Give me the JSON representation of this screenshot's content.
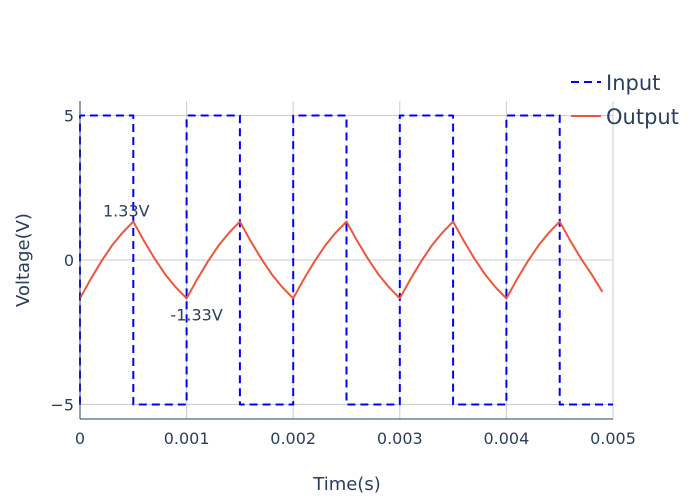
{
  "chart_data": {
    "type": "line",
    "title": "",
    "xlabel": "Time(s)",
    "ylabel": "Voltage(V)",
    "xlim": [
      0,
      0.005
    ],
    "ylim": [
      -5.5,
      5.5
    ],
    "x_ticks": [
      {
        "value": 0,
        "label": "0"
      },
      {
        "value": 0.001,
        "label": "0.001"
      },
      {
        "value": 0.002,
        "label": "0.002"
      },
      {
        "value": 0.003,
        "label": "0.003"
      },
      {
        "value": 0.004,
        "label": "0.004"
      },
      {
        "value": 0.005,
        "label": "0.005"
      }
    ],
    "y_ticks": [
      {
        "value": -5,
        "label": "−5"
      },
      {
        "value": 0,
        "label": "0"
      },
      {
        "value": 5,
        "label": "5"
      }
    ],
    "grid": true,
    "legend_position": "top-right",
    "series": [
      {
        "name": "Input",
        "color": "#0000ff",
        "dash": "dashed",
        "x": [
          0,
          0,
          0.0005,
          0.0005,
          0.001,
          0.001,
          0.0015,
          0.0015,
          0.002,
          0.002,
          0.0025,
          0.0025,
          0.003,
          0.003,
          0.0035,
          0.0035,
          0.004,
          0.004,
          0.0045,
          0.0045,
          0.005
        ],
        "y": [
          -5,
          5,
          5,
          -5,
          -5,
          5,
          5,
          -5,
          -5,
          5,
          5,
          -5,
          -5,
          5,
          5,
          -5,
          -5,
          5,
          5,
          -5,
          -5
        ]
      },
      {
        "name": "Output",
        "color": "#ef553b",
        "dash": "solid",
        "x": [
          0,
          0.0001,
          0.0002,
          0.0003,
          0.0004,
          0.0005,
          0.0006,
          0.0007,
          0.0008,
          0.0009,
          0.001,
          0.0011,
          0.0012,
          0.0013,
          0.0014,
          0.0015,
          0.0016,
          0.0017,
          0.0018,
          0.0019,
          0.002,
          0.0021,
          0.0022,
          0.0023,
          0.0024,
          0.0025,
          0.0026,
          0.0027,
          0.0028,
          0.0029,
          0.003,
          0.0031,
          0.0032,
          0.0033,
          0.0034,
          0.0035,
          0.0036,
          0.0037,
          0.0038,
          0.0039,
          0.004,
          0.0041,
          0.0042,
          0.0043,
          0.0044,
          0.0045,
          0.0046,
          0.0047,
          0.0048,
          0.0049
        ],
        "y": [
          -1.33,
          -0.66,
          -0.05,
          0.5,
          0.95,
          1.33,
          0.66,
          0.05,
          -0.5,
          -0.95,
          -1.33,
          -0.66,
          -0.05,
          0.5,
          0.95,
          1.33,
          0.66,
          0.05,
          -0.5,
          -0.95,
          -1.33,
          -0.66,
          -0.05,
          0.5,
          0.95,
          1.33,
          0.66,
          0.05,
          -0.5,
          -0.95,
          -1.33,
          -0.66,
          -0.05,
          0.5,
          0.95,
          1.33,
          0.66,
          0.05,
          -0.5,
          -0.95,
          -1.33,
          -0.66,
          -0.05,
          0.5,
          0.95,
          1.33,
          0.66,
          0.05,
          -0.5,
          -1.1
        ]
      }
    ],
    "annotations": [
      {
        "text": "1.33V",
        "x": 0.0005,
        "y": 1.33
      },
      {
        "text": "-1.33V",
        "x": 0.001,
        "y": -1.33
      }
    ]
  }
}
